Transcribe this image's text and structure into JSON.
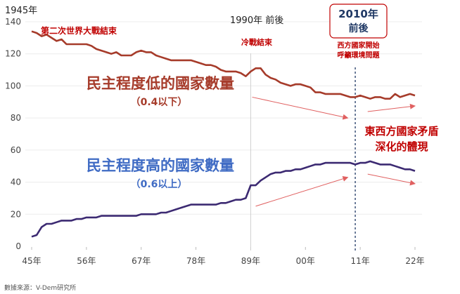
{
  "chart_data": {
    "type": "line",
    "title": "",
    "xlabel": "",
    "ylabel": "",
    "ylim": [
      0,
      140
    ],
    "xlim": [
      1945,
      2022
    ],
    "y_ticks": [
      0,
      20,
      40,
      60,
      80,
      100,
      120,
      140
    ],
    "x_ticks": [
      {
        "value": 1945,
        "label": "45年"
      },
      {
        "value": 1956,
        "label": "56年"
      },
      {
        "value": 1967,
        "label": "67年"
      },
      {
        "value": 1978,
        "label": "78年"
      },
      {
        "value": 1989,
        "label": "89年"
      },
      {
        "value": 2000,
        "label": "00年"
      },
      {
        "value": 2011,
        "label": "11年"
      },
      {
        "value": 2022,
        "label": "22年"
      }
    ],
    "grid": true,
    "x": [
      1945,
      1946,
      1947,
      1948,
      1949,
      1950,
      1951,
      1952,
      1953,
      1954,
      1955,
      1956,
      1957,
      1958,
      1959,
      1960,
      1961,
      1962,
      1963,
      1964,
      1965,
      1966,
      1967,
      1968,
      1969,
      1970,
      1971,
      1972,
      1973,
      1974,
      1975,
      1976,
      1977,
      1978,
      1979,
      1980,
      1981,
      1982,
      1983,
      1984,
      1985,
      1986,
      1987,
      1988,
      1989,
      1990,
      1991,
      1992,
      1993,
      1994,
      1995,
      1996,
      1997,
      1998,
      1999,
      2000,
      2001,
      2002,
      2003,
      2004,
      2005,
      2006,
      2007,
      2008,
      2009,
      2010,
      2011,
      2012,
      2013,
      2014,
      2015,
      2016,
      2017,
      2018,
      2019,
      2020,
      2021,
      2022
    ],
    "series": [
      {
        "name": "民主程度低的國家數量",
        "color": "#a63b2a",
        "values": [
          134,
          133,
          131,
          132,
          130,
          128,
          129,
          126,
          126,
          126,
          126,
          126,
          125,
          123,
          122,
          121,
          120,
          121,
          119,
          119,
          119,
          121,
          122,
          121,
          121,
          119,
          118,
          117,
          116,
          116,
          116,
          116,
          116,
          115,
          114,
          113,
          113,
          112,
          110,
          109,
          109,
          109,
          108,
          106,
          109,
          111,
          111,
          107,
          105,
          104,
          102,
          101,
          100,
          101,
          101,
          100,
          99,
          96,
          96,
          95,
          95,
          95,
          95,
          94,
          93,
          93,
          94,
          93,
          92,
          93,
          93,
          92,
          92,
          95,
          93,
          94,
          95,
          94
        ]
      },
      {
        "name": "民主程度高的國家數量",
        "color": "#3c2a72",
        "values": [
          6,
          7,
          12,
          14,
          14,
          15,
          16,
          16,
          16,
          17,
          17,
          18,
          18,
          18,
          19,
          19,
          19,
          19,
          19,
          19,
          19,
          19,
          20,
          20,
          20,
          20,
          21,
          21,
          22,
          23,
          24,
          25,
          26,
          26,
          26,
          26,
          26,
          26,
          27,
          27,
          28,
          29,
          29,
          30,
          38,
          38,
          41,
          43,
          45,
          46,
          46,
          47,
          47,
          48,
          48,
          49,
          50,
          51,
          51,
          52,
          52,
          52,
          52,
          52,
          52,
          51,
          52,
          52,
          53,
          52,
          51,
          51,
          51,
          50,
          49,
          48,
          48,
          47
        ]
      }
    ],
    "vertical_lines": [
      {
        "x": 1989,
        "style": "solid",
        "color": "#d0d0d0"
      },
      {
        "x": 2010,
        "style": "dashed",
        "color": "#1f3864"
      }
    ],
    "annotations": {
      "year_1945": "1945年",
      "ww2_end": "第二次世界大戰結束",
      "year_1990": "1990年 前後",
      "cold_war_end": "冷戰結束",
      "year_2010_line1": "2010年",
      "year_2010_line2": "前後",
      "west_line1": "西方國家開始",
      "west_line2": "呼籲環境問題",
      "low_title": "民主程度低的國家數量",
      "low_sub": "（0.4以下）",
      "high_title": "民主程度高的國家數量",
      "high_sub": "（0.6以上）",
      "contradiction_line1": "東西方國家矛盾",
      "contradiction_line2": "深化的體現",
      "source": "數據來源：V-Dem研究所"
    },
    "colors": {
      "low_text": "#a63b2a",
      "high_text": "#3f6bc4",
      "red_annotation": "#c00000",
      "navy": "#1f3864",
      "arrow": "#e06060"
    }
  }
}
